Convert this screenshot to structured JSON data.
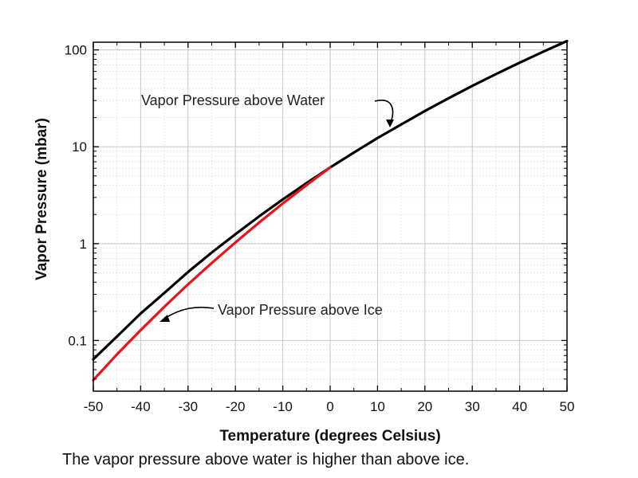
{
  "chart_data": {
    "type": "line",
    "title": "",
    "xlabel": "Temperature (degrees Celsius)",
    "ylabel": "Vapor Pressure (mbar)",
    "xlim": [
      -50,
      50
    ],
    "ylim": [
      0.03,
      120
    ],
    "yscale": "log",
    "grid": true,
    "x_ticks": [
      "-50",
      "-40",
      "-30",
      "-20",
      "-10",
      "0",
      "10",
      "20",
      "30",
      "40",
      "50"
    ],
    "y_ticks": [
      {
        "value": 0.1,
        "label": "0.1"
      },
      {
        "value": 1,
        "label": "1"
      },
      {
        "value": 10,
        "label": "10"
      },
      {
        "value": 100,
        "label": "100"
      }
    ],
    "series": [
      {
        "color": "#000000",
        "x": [
          -50,
          -45,
          -40,
          -35,
          -30,
          -25,
          -20,
          -15,
          -10,
          -5,
          0,
          5,
          10,
          15,
          20,
          25,
          30,
          35,
          40,
          45,
          50
        ],
        "y": [
          0.064,
          0.11,
          0.19,
          0.31,
          0.51,
          0.81,
          1.25,
          1.91,
          2.86,
          4.22,
          6.11,
          8.72,
          12.3,
          17.0,
          23.4,
          31.7,
          42.5,
          56.3,
          73.8,
          95.9,
          123.4
        ]
      },
      {
        "color": "#e8131b",
        "x": [
          -50,
          -45,
          -40,
          -35,
          -30,
          -25,
          -20,
          -15,
          -10,
          -5,
          0
        ],
        "y": [
          0.039,
          0.072,
          0.128,
          0.223,
          0.38,
          0.63,
          1.03,
          1.65,
          2.6,
          4.02,
          6.11
        ]
      }
    ],
    "annotations": [
      {
        "text": "Vapor Pressure above Water",
        "target": [
          13,
          13
        ]
      },
      {
        "text": "Vapor Pressure above Ice",
        "target": [
          -36,
          0.16
        ]
      }
    ]
  },
  "caption": "The vapor pressure above water is higher than above ice."
}
